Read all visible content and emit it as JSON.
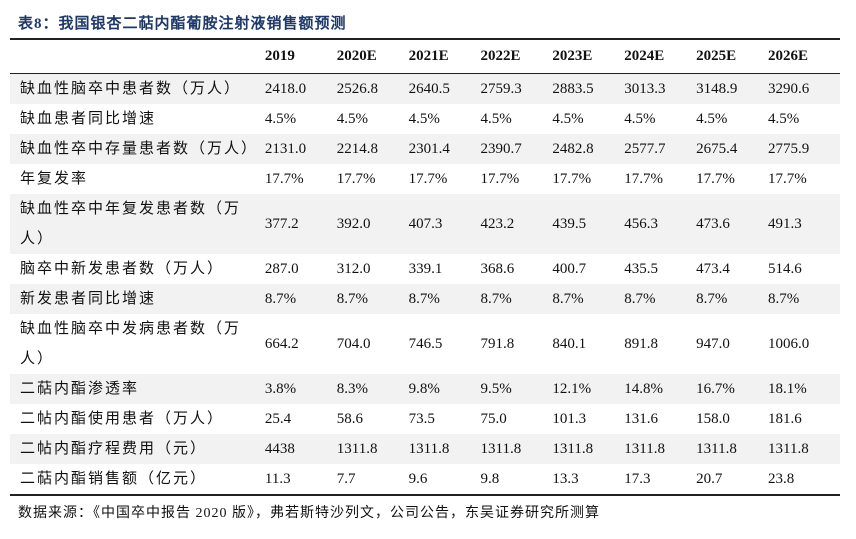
{
  "title": "表8：我国银杏二萜内酯葡胺注射液销售额预测",
  "table": {
    "headers": [
      "",
      "2019",
      "2020E",
      "2021E",
      "2022E",
      "2023E",
      "2024E",
      "2025E",
      "2026E"
    ],
    "rows": [
      {
        "label": "缺血性脑卒中患者数（万人）",
        "values": [
          "2418.0",
          "2526.8",
          "2640.5",
          "2759.3",
          "2883.5",
          "3013.3",
          "3148.9",
          "3290.6"
        ]
      },
      {
        "label": "缺血患者同比增速",
        "values": [
          "4.5%",
          "4.5%",
          "4.5%",
          "4.5%",
          "4.5%",
          "4.5%",
          "4.5%",
          "4.5%"
        ]
      },
      {
        "label": "缺血性卒中存量患者数（万人）",
        "values": [
          "2131.0",
          "2214.8",
          "2301.4",
          "2390.7",
          "2482.8",
          "2577.7",
          "2675.4",
          "2775.9"
        ]
      },
      {
        "label": "年复发率",
        "values": [
          "17.7%",
          "17.7%",
          "17.7%",
          "17.7%",
          "17.7%",
          "17.7%",
          "17.7%",
          "17.7%"
        ]
      },
      {
        "label": "缺血性卒中年复发患者数（万人）",
        "values": [
          "377.2",
          "392.0",
          "407.3",
          "423.2",
          "439.5",
          "456.3",
          "473.6",
          "491.3"
        ],
        "tall": true
      },
      {
        "label": "脑卒中新发患者数（万人）",
        "values": [
          "287.0",
          "312.0",
          "339.1",
          "368.6",
          "400.7",
          "435.5",
          "473.4",
          "514.6"
        ]
      },
      {
        "label": "新发患者同比增速",
        "values": [
          "8.7%",
          "8.7%",
          "8.7%",
          "8.7%",
          "8.7%",
          "8.7%",
          "8.7%",
          "8.7%"
        ]
      },
      {
        "label": "缺血性脑卒中发病患者数（万人）",
        "values": [
          "664.2",
          "704.0",
          "746.5",
          "791.8",
          "840.1",
          "891.8",
          "947.0",
          "1006.0"
        ],
        "tall": true
      },
      {
        "label": "二萜内酯渗透率",
        "values": [
          "3.8%",
          "8.3%",
          "9.8%",
          "9.5%",
          "12.1%",
          "14.8%",
          "16.7%",
          "18.1%"
        ]
      },
      {
        "label": "二帖内酯使用患者（万人）",
        "values": [
          "25.4",
          "58.6",
          "73.5",
          "75.0",
          "101.3",
          "131.6",
          "158.0",
          "181.6"
        ]
      },
      {
        "label": "二帖内酯疗程费用（元）",
        "values": [
          "4438",
          "1311.8",
          "1311.8",
          "1311.8",
          "1311.8",
          "1311.8",
          "1311.8",
          "1311.8"
        ]
      },
      {
        "label": "二萜内酯销售额（亿元）",
        "values": [
          "11.3",
          "7.7",
          "9.6",
          "9.8",
          "13.3",
          "17.3",
          "20.7",
          "23.8"
        ]
      }
    ]
  },
  "source": "数据来源：《中国卒中报告 2020 版》，弗若斯特沙列文，公司公告，东吴证券研究所测算",
  "colors": {
    "title": "#1f3864",
    "row_shade": "#f2f2f2"
  }
}
